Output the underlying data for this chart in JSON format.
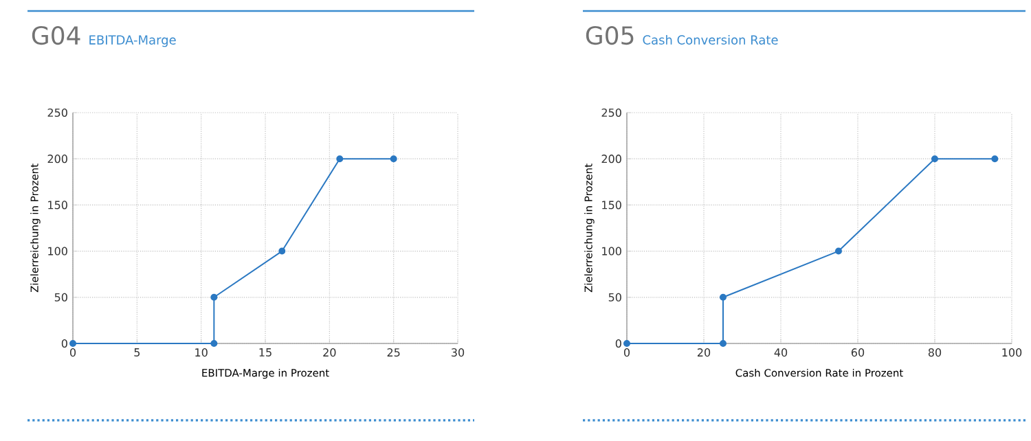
{
  "chart_data": [
    {
      "type": "line",
      "title": "G04",
      "subtitle": "EBITDA-Marge",
      "xlabel": "EBITDA-Marge in Prozent",
      "ylabel": "Zielerreichung in Prozent",
      "xlim": [
        0,
        30
      ],
      "xticks": [
        0,
        5,
        10,
        15,
        20,
        25,
        30
      ],
      "ylim": [
        0,
        250
      ],
      "yticks": [
        0,
        50,
        100,
        150,
        200,
        250
      ],
      "grid": true,
      "marker": "circle",
      "line_style": "solid",
      "series": [
        {
          "color": "#2a78c2",
          "x": [
            0,
            11,
            11,
            16.3,
            20.8,
            25
          ],
          "values": [
            0,
            0,
            50,
            100,
            200,
            200
          ]
        }
      ]
    },
    {
      "type": "line",
      "title": "G05",
      "subtitle": "Cash Conversion Rate",
      "xlabel": "Cash Conversion Rate in Prozent",
      "ylabel": "Zielerreichung in Prozent",
      "xlim": [
        0,
        100
      ],
      "xticks": [
        0,
        20,
        40,
        60,
        80,
        100
      ],
      "ylim": [
        0,
        250
      ],
      "yticks": [
        0,
        50,
        100,
        150,
        200,
        250
      ],
      "grid": true,
      "marker": "circle",
      "line_style": "solid",
      "series": [
        {
          "color": "#2a78c2",
          "x": [
            0,
            25,
            25,
            55,
            80,
            95.6
          ],
          "values": [
            0,
            0,
            50,
            100,
            200,
            200
          ]
        }
      ]
    }
  ]
}
